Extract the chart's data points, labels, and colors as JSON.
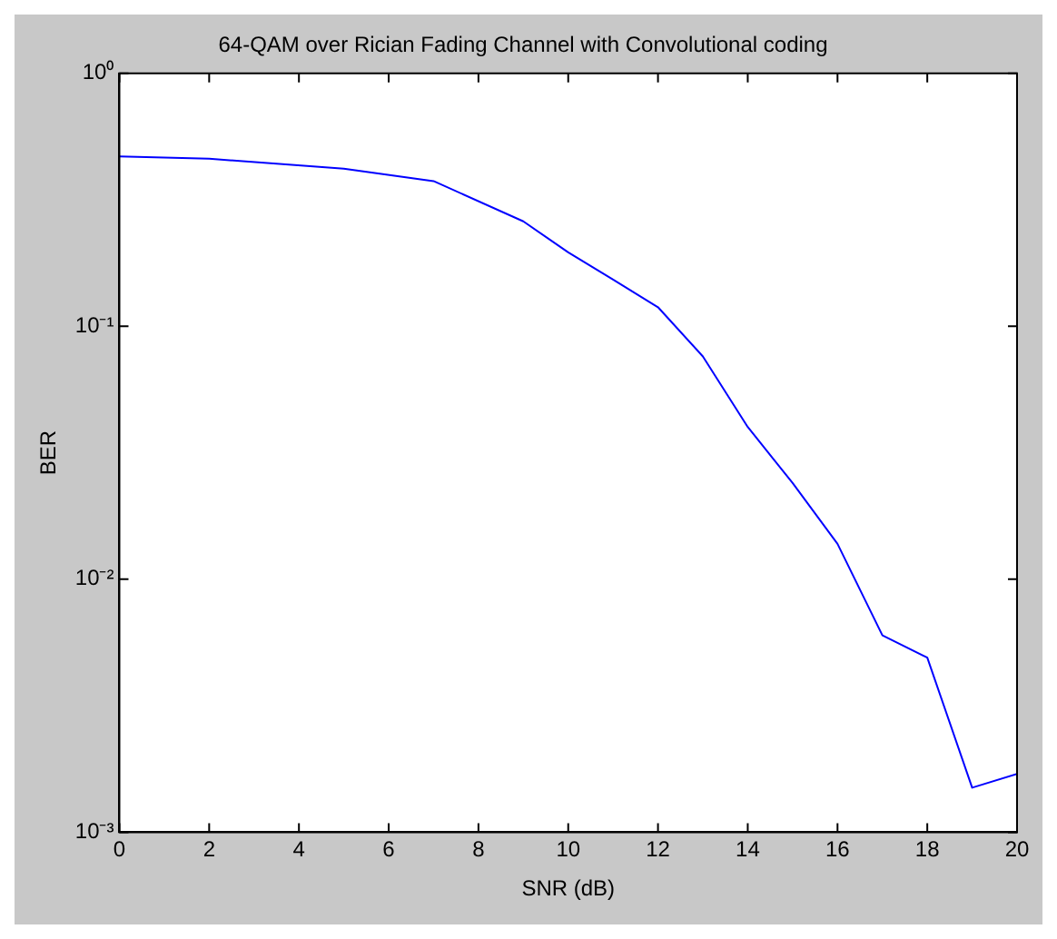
{
  "chart_data": {
    "type": "line",
    "title": "64-QAM over Rician Fading Channel with Convolutional coding",
    "xlabel": "SNR (dB)",
    "ylabel": "BER",
    "x": [
      0,
      2,
      5,
      7,
      9,
      10,
      11,
      12,
      13,
      14,
      15,
      16,
      17,
      18,
      19,
      20
    ],
    "series": [
      {
        "color": "#0000ff",
        "values": [
          0.47,
          0.46,
          0.42,
          0.375,
          0.26,
          0.196,
          0.153,
          0.119,
          0.076,
          0.04,
          0.024,
          0.0138,
          0.006,
          0.0049,
          0.0015,
          0.0017
        ]
      }
    ],
    "xlim": [
      0,
      20
    ],
    "xticks": [
      0,
      2,
      4,
      6,
      8,
      10,
      12,
      14,
      16,
      18,
      20
    ],
    "ylim": [
      0.001,
      1
    ],
    "yticks": [
      {
        "value": 0.001,
        "label": "10⁻³"
      },
      {
        "value": 0.01,
        "label": "10⁻²"
      },
      {
        "value": 0.1,
        "label": "10⁻¹"
      },
      {
        "value": 1,
        "label": "10⁰"
      }
    ],
    "log": "y",
    "grid": false,
    "legend": false,
    "marker": "none",
    "line_style": "solid"
  }
}
